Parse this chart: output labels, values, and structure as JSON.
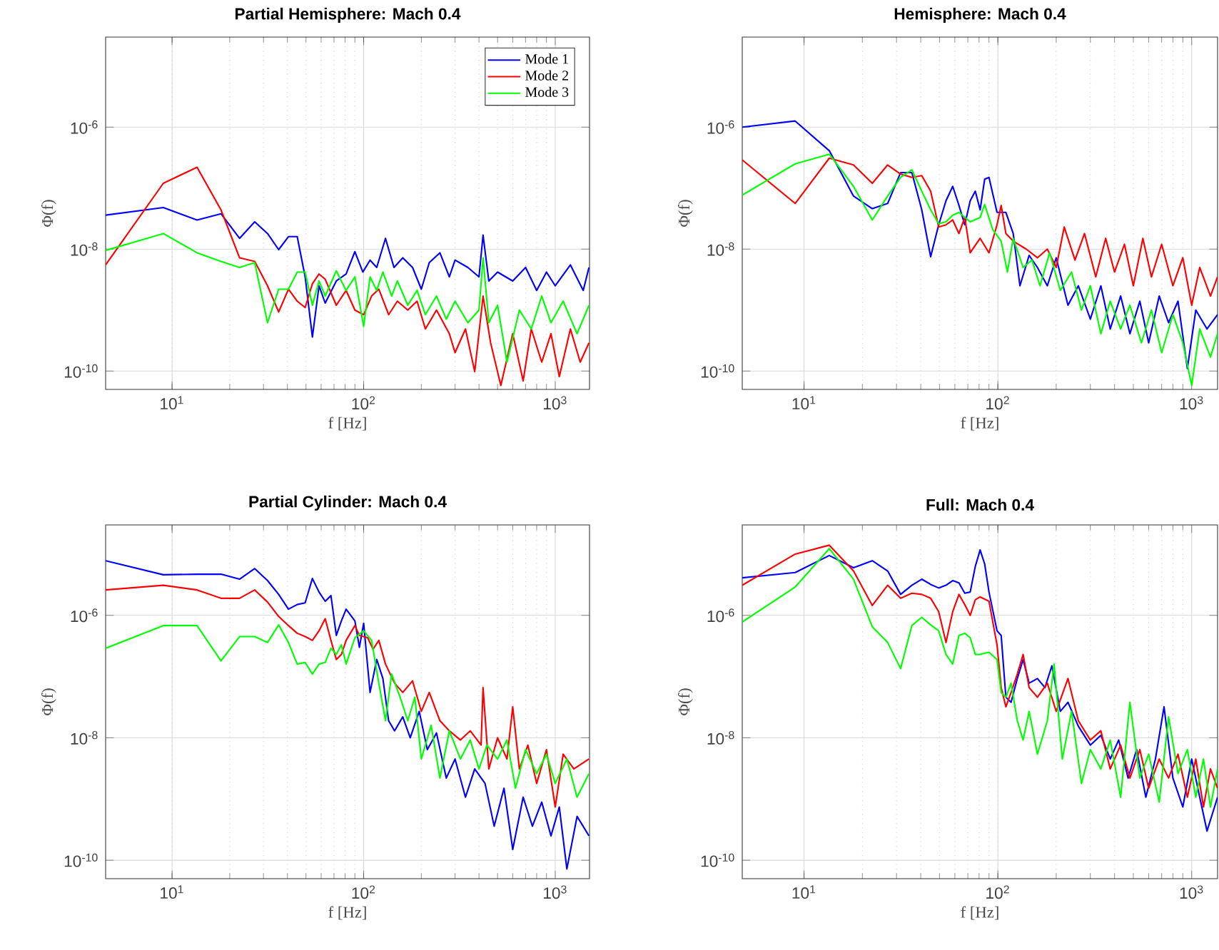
{
  "chart_data": [
    {
      "type": "line",
      "title": "Partial Hemisphere: Mach 0.4",
      "xlabel": "f [Hz]",
      "ylabel": "Φ(f)",
      "log": "xy",
      "grid": true,
      "legend": "top right",
      "xlim": [
        4.5,
        1510
      ],
      "ylim": [
        5e-11,
        3e-05
      ],
      "xticks": [
        {
          "value": 10,
          "label": "10$^{1}$"
        },
        {
          "value": 100,
          "label": "10$^{2}$"
        },
        {
          "value": 1000,
          "label": "10$^{3}$"
        }
      ],
      "yticks": [
        {
          "value": 1e-10,
          "label": "10$^{-10}$"
        },
        {
          "value": 1e-08,
          "label": "10$^{-8}$"
        },
        {
          "value": 1e-06,
          "label": "10$^{-6}$"
        }
      ],
      "series": [
        {
          "name": "Mode 1",
          "color": "#0000ff",
          "x": [
            4.5,
            9,
            13.5,
            18,
            22.5,
            27,
            31.5,
            36,
            40.5,
            45,
            49.5,
            54,
            58.5,
            63,
            72,
            81,
            90,
            99,
            108,
            117,
            130,
            144,
            160,
            180,
            200,
            220,
            250,
            280,
            300,
            350,
            400,
            420,
            450,
            500,
            600,
            700,
            800,
            900,
            1000,
            1200,
            1400,
            1500
          ],
          "values": [
            3.6e-08,
            4.8e-08,
            3e-08,
            3.8e-08,
            1.5e-08,
            2.8e-08,
            1.8e-08,
            9.8e-09,
            1.6e-08,
            1.6e-08,
            3.5e-09,
            3.6e-10,
            2.5e-09,
            1.3e-09,
            3e-09,
            3.9e-09,
            9.1e-09,
            4.2e-09,
            6.6e-09,
            5e-09,
            1.5e-08,
            5e-09,
            7.2e-09,
            5e-09,
            2.2e-09,
            6e-09,
            8.7e-09,
            3.5e-09,
            6.6e-09,
            5e-09,
            3.5e-09,
            1.7e-08,
            3e-09,
            4.2e-09,
            3e-09,
            5e-09,
            2.1e-09,
            4.2e-09,
            2.5e-09,
            5.5e-09,
            2.1e-09,
            5e-09
          ]
        },
        {
          "name": "Mode 2",
          "color": "#ff0000",
          "x": [
            4.5,
            9,
            13.5,
            18,
            22.5,
            27,
            31.5,
            36,
            40.5,
            45,
            49.5,
            54,
            58.5,
            63,
            72,
            81,
            90,
            100,
            110,
            120,
            135,
            150,
            170,
            190,
            210,
            240,
            280,
            300,
            340,
            380,
            420,
            460,
            520,
            600,
            680,
            750,
            850,
            950,
            1050,
            1200,
            1350,
            1500
          ],
          "values": [
            5.5e-09,
            1.2e-07,
            2.2e-07,
            4.4e-08,
            7.2e-09,
            6.3e-09,
            2.5e-09,
            9.3e-10,
            2.2e-09,
            1.4e-09,
            1.1e-09,
            2.7e-09,
            3.9e-09,
            3.2e-09,
            1.2e-09,
            2.1e-09,
            1e-09,
            8.4e-10,
            1.7e-09,
            2.2e-09,
            8.4e-10,
            1.4e-09,
            1e-09,
            1.4e-09,
            4.9e-10,
            1e-09,
            4.1e-10,
            2e-10,
            4.9e-10,
            9.8e-11,
            1.7e-09,
            2.9e-10,
            5.8e-11,
            4.1e-10,
            6.9e-11,
            4.9e-10,
            1.4e-10,
            4.1e-10,
            8.1e-11,
            4.9e-10,
            1.4e-10,
            2.9e-10
          ]
        },
        {
          "name": "Mode 3",
          "color": "#00ff00",
          "x": [
            4.5,
            9,
            13.5,
            18,
            22.5,
            27,
            31.5,
            36,
            40.5,
            45,
            49.5,
            54,
            58.5,
            63,
            72,
            81,
            90,
            100,
            108,
            117,
            126,
            140,
            150,
            170,
            190,
            210,
            240,
            270,
            300,
            350,
            400,
            420,
            450,
            500,
            560,
            650,
            750,
            850,
            950,
            1100,
            1300,
            1500
          ],
          "values": [
            9.5e-09,
            1.8e-08,
            8.7e-09,
            6.3e-09,
            5e-09,
            6e-09,
            6.2e-10,
            2.2e-09,
            2.2e-09,
            4.2e-09,
            4.2e-09,
            1.2e-09,
            3e-09,
            1.7e-09,
            4.4e-09,
            2.1e-09,
            3.5e-09,
            5.4e-10,
            3.5e-09,
            2.1e-09,
            4.2e-09,
            1.7e-09,
            3e-09,
            1.2e-09,
            2.1e-09,
            8.4e-10,
            1.7e-09,
            7.1e-10,
            1.4e-09,
            6.2e-10,
            1e-09,
            7.2e-09,
            6.2e-10,
            1.2e-09,
            1.4e-10,
            1e-09,
            4.9e-10,
            1.7e-09,
            6.2e-10,
            1.4e-09,
            4.1e-10,
            1.2e-09
          ]
        }
      ]
    },
    {
      "type": "line",
      "title": "Hemisphere: Mach 0.4",
      "xlabel": "f [Hz]",
      "ylabel": "Φ(f)",
      "log": "xy",
      "grid": true,
      "xlim": [
        4.8,
        1360
      ],
      "ylim": [
        5e-11,
        3e-05
      ],
      "xticks": [
        {
          "value": 10,
          "label": "10$^{1}$"
        },
        {
          "value": 100,
          "label": "10$^{2}$"
        },
        {
          "value": 1000,
          "label": "10$^{3}$"
        }
      ],
      "yticks": [
        {
          "value": 1e-10,
          "label": "10$^{-10}$"
        },
        {
          "value": 1e-08,
          "label": "10$^{-8}$"
        },
        {
          "value": 1e-06,
          "label": "10$^{-6}$"
        }
      ],
      "series": [
        {
          "color": "#0000ff",
          "x": [
            4.8,
            9,
            13.5,
            18,
            22.5,
            27,
            31.5,
            36,
            40.5,
            45,
            49.5,
            54,
            58.5,
            63,
            67.5,
            72,
            76.5,
            81,
            85.5,
            90,
            99,
            110,
            120,
            130,
            145,
            160,
            180,
            200,
            230,
            260,
            300,
            340,
            380,
            430,
            480,
            540,
            600,
            680,
            760,
            850,
            950,
            1050,
            1200,
            1360
          ],
          "values": [
            1e-06,
            1.26e-06,
            4.1e-07,
            7.4e-08,
            4.6e-08,
            5.6e-08,
            1.8e-07,
            1.8e-07,
            4.4e-08,
            7.5e-09,
            2.5e-08,
            6.2e-08,
            1.07e-07,
            5.2e-08,
            2.5e-08,
            6.2e-08,
            8.9e-08,
            4.4e-08,
            1.4e-07,
            1.5e-07,
            4e-08,
            4e-08,
            1.8e-08,
            2.5e-09,
            7.9e-09,
            5e-09,
            2.5e-09,
            7.2e-09,
            1.2e-09,
            2.5e-09,
            7.1e-10,
            2.5e-09,
            4.9e-10,
            1.7e-09,
            4.1e-10,
            1.4e-09,
            2.9e-10,
            1.7e-09,
            6.2e-10,
            1.4e-09,
            1.1e-10,
            1e-09,
            4.9e-10,
            8.4e-10
          ]
        },
        {
          "color": "#ff0000",
          "x": [
            4.8,
            9,
            13.5,
            18,
            22.5,
            27,
            31.5,
            36,
            40.5,
            45,
            49.5,
            54,
            58.5,
            63,
            67.5,
            72,
            81,
            90,
            99,
            104,
            110,
            120,
            140,
            160,
            180,
            200,
            220,
            250,
            280,
            320,
            360,
            400,
            450,
            500,
            560,
            620,
            700,
            800,
            900,
            1000,
            1100,
            1250,
            1360
          ],
          "values": [
            2.9e-07,
            5.6e-08,
            3.1e-07,
            2.4e-07,
            1.2e-07,
            2.4e-07,
            1.7e-07,
            1.5e-07,
            1.6e-07,
            8.9e-08,
            2.3e-08,
            2.5e-08,
            3e-08,
            1.8e-08,
            3.3e-08,
            8.7e-09,
            1.5e-08,
            8.7e-09,
            2.5e-08,
            5.2e-08,
            1.8e-08,
            1.35e-08,
            1e-08,
            7.2e-09,
            1e-08,
            5e-09,
            2.3e-08,
            6.6e-09,
            1.8e-08,
            3.5e-09,
            1.5e-08,
            4.2e-09,
            1.2e-08,
            2.5e-09,
            1.5e-08,
            3.5e-09,
            1.2e-08,
            2.5e-09,
            7.2e-09,
            1.2e-09,
            5e-09,
            1.7e-09,
            3.5e-09
          ]
        },
        {
          "color": "#00ff00",
          "x": [
            4.8,
            9,
            13.5,
            18,
            22.5,
            27,
            31.5,
            36,
            40.5,
            45,
            49.5,
            54,
            58.5,
            63,
            72,
            81,
            85.5,
            94,
            104,
            112,
            120,
            135,
            150,
            165,
            185,
            210,
            240,
            270,
            300,
            340,
            380,
            430,
            480,
            550,
            620,
            700,
            800,
            900,
            1000,
            1100,
            1250,
            1360
          ],
          "values": [
            7.7e-08,
            2.5e-07,
            3.6e-07,
            1.07e-07,
            3e-08,
            7.4e-08,
            1.5e-07,
            2e-07,
            8.9e-08,
            4.4e-08,
            2.6e-08,
            2.8e-08,
            3.6e-08,
            4e-08,
            2.8e-08,
            3.3e-08,
            5.4e-08,
            2.1e-08,
            1.35e-08,
            4.2e-09,
            1.5e-08,
            5e-09,
            6.6e-09,
            2.5e-09,
            8.7e-09,
            2.1e-09,
            4.2e-09,
            1e-09,
            2.5e-09,
            4.1e-10,
            1.4e-09,
            4.9e-10,
            1.2e-09,
            2.9e-10,
            1e-09,
            2e-10,
            8.4e-10,
            2.9e-10,
            5.8e-11,
            4.9e-10,
            1.7e-10,
            4.1e-10
          ]
        }
      ]
    },
    {
      "type": "line",
      "title": "Partial Cylinder: Mach 0.4",
      "xlabel": "f [Hz]",
      "ylabel": "Φ(f)",
      "log": "xy",
      "grid": true,
      "xlim": [
        4.5,
        1510
      ],
      "ylim": [
        5e-11,
        3e-05
      ],
      "xticks": [
        {
          "value": 10,
          "label": "10$^{1}$"
        },
        {
          "value": 100,
          "label": "10$^{2}$"
        },
        {
          "value": 1000,
          "label": "10$^{3}$"
        }
      ],
      "yticks": [
        {
          "value": 1e-10,
          "label": "10$^{-10}$"
        },
        {
          "value": 1e-08,
          "label": "10$^{-8}$"
        },
        {
          "value": 1e-06,
          "label": "10$^{-6}$"
        }
      ],
      "series": [
        {
          "color": "#0000ff",
          "x": [
            4.5,
            9,
            13.5,
            18,
            22.5,
            27,
            31.5,
            36,
            40.5,
            45,
            49.5,
            54,
            58.5,
            63,
            67.5,
            72,
            76.5,
            81,
            90,
            95,
            100,
            108,
            117,
            126,
            135,
            145,
            160,
            175,
            195,
            215,
            240,
            270,
            300,
            340,
            380,
            430,
            480,
            540,
            600,
            680,
            760,
            850,
            950,
            1050,
            1150,
            1300,
            1500
          ],
          "values": [
            7.8e-06,
            4.6e-06,
            4.7e-06,
            4.7e-06,
            3.9e-06,
            5.8e-06,
            3.7e-06,
            2.2e-06,
            1.26e-06,
            1.5e-06,
            1.6e-06,
            4e-06,
            2.4e-06,
            1.7e-06,
            2.1e-06,
            4.7e-07,
            8.1e-07,
            1.26e-06,
            8.1e-07,
            3e-07,
            7.4e-07,
            5.5e-08,
            1.9e-07,
            9.3e-08,
            1.9e-08,
            1.3e-08,
            2.2e-08,
            1e-08,
            2.7e-08,
            6.4e-09,
            1.2e-08,
            2.2e-09,
            4.5e-09,
            1.07e-09,
            3.1e-09,
            1.8e-09,
            3.6e-10,
            1.5e-09,
            1.5e-10,
            1.07e-09,
            3.6e-10,
            8.9e-10,
            2.5e-10,
            7.4e-10,
            7.2e-11,
            5.2e-10,
            2.5e-10
          ]
        },
        {
          "color": "#ff0000",
          "x": [
            4.5,
            9,
            13.5,
            18,
            22.5,
            27,
            31.5,
            36,
            40.5,
            45,
            49.5,
            54,
            58.5,
            63,
            67.5,
            72,
            76.5,
            81,
            90,
            95,
            105,
            112,
            120,
            130,
            145,
            160,
            180,
            200,
            220,
            250,
            280,
            320,
            360,
            410,
            420,
            450,
            500,
            560,
            600,
            650,
            720,
            800,
            900,
            1000,
            1100,
            1250,
            1500
          ],
          "values": [
            2.6e-06,
            3.1e-06,
            2.6e-06,
            1.9e-06,
            1.9e-06,
            2.6e-06,
            1.65e-06,
            9.6e-07,
            6.8e-07,
            5.1e-07,
            4.5e-07,
            3.9e-07,
            5.6e-07,
            8.8e-07,
            3.9e-07,
            1.9e-07,
            2.3e-07,
            3.9e-07,
            6.8e-07,
            4.7e-07,
            4.3e-07,
            2.8e-07,
            3.9e-07,
            1.6e-07,
            7.8e-08,
            5.5e-08,
            8.5e-08,
            2.7e-08,
            5.5e-08,
            1.9e-08,
            1.3e-08,
            9.2e-09,
            1.3e-08,
            7.6e-09,
            6.6e-08,
            3.1e-09,
            1e-08,
            4.5e-09,
            3.2e-08,
            3.1e-09,
            7.6e-09,
            1.8e-09,
            6.4e-09,
            7.4e-10,
            5.4e-09,
            3.1e-09,
            4.5e-09
          ]
        },
        {
          "color": "#00ff00",
          "x": [
            4.5,
            9,
            13.5,
            18,
            22.5,
            27,
            31.5,
            36,
            40.5,
            45,
            49.5,
            54,
            58.5,
            63,
            67.5,
            72,
            76.5,
            81,
            90,
            100,
            110,
            120,
            130,
            140,
            155,
            170,
            185,
            200,
            225,
            250,
            280,
            320,
            360,
            400,
            440,
            500,
            560,
            620,
            700,
            800,
            900,
            1000,
            1150,
            1300,
            1500
          ],
          "values": [
            2.9e-07,
            6.8e-07,
            6.8e-07,
            1.8e-07,
            4.5e-07,
            4.5e-07,
            3.6e-07,
            7e-07,
            3.6e-07,
            1.6e-07,
            1.7e-07,
            1.1e-07,
            1.6e-07,
            1.7e-07,
            2.9e-07,
            2.3e-07,
            3.3e-07,
            1.6e-07,
            4.3e-07,
            5.6e-07,
            3.9e-07,
            7.8e-08,
            1.9e-08,
            1.1e-07,
            4.6e-08,
            1.9e-08,
            4.6e-08,
            4.5e-09,
            1.6e-08,
            2.2e-09,
            1.3e-08,
            4.5e-09,
            9.2e-09,
            3.1e-09,
            7.6e-09,
            4.5e-09,
            9.2e-09,
            1.5e-09,
            6.4e-09,
            2.6e-09,
            5.4e-09,
            1.8e-09,
            4.5e-09,
            1.07e-09,
            2.6e-09
          ]
        }
      ]
    },
    {
      "type": "line",
      "title": "Full: Mach 0.4",
      "xlabel": "f [Hz]",
      "ylabel": "Φ(f)",
      "log": "xy",
      "grid": true,
      "xlim": [
        4.8,
        1360
      ],
      "ylim": [
        5e-11,
        3e-05
      ],
      "xticks": [
        {
          "value": 10,
          "label": "10$^{1}$"
        },
        {
          "value": 100,
          "label": "10$^{2}$"
        },
        {
          "value": 1000,
          "label": "10$^{3}$"
        }
      ],
      "yticks": [
        {
          "value": 1e-10,
          "label": "10$^{-10}$"
        },
        {
          "value": 1e-08,
          "label": "10$^{-8}$"
        },
        {
          "value": 1e-06,
          "label": "10$^{-6}$"
        }
      ],
      "series": [
        {
          "color": "#0000ff",
          "x": [
            4.8,
            9,
            13.5,
            18,
            22.5,
            27,
            31.5,
            36,
            40.5,
            45,
            49.5,
            54,
            58.5,
            63,
            67.5,
            72,
            76.5,
            81,
            85.5,
            90,
            99,
            104,
            110,
            117,
            126,
            135,
            145,
            160,
            175,
            190,
            210,
            230,
            260,
            300,
            340,
            380,
            420,
            470,
            520,
            580,
            650,
            720,
            800,
            900,
            1000,
            1100,
            1200,
            1360
          ],
          "values": [
            4.1e-06,
            5e-06,
            9.5e-06,
            6e-06,
            7.8e-06,
            5.3e-06,
            2.2e-06,
            3.1e-06,
            3.9e-06,
            3.2e-06,
            2.8e-06,
            3.1e-06,
            3.7e-06,
            3.4e-06,
            2.3e-06,
            2.4e-06,
            6.3e-06,
            1.17e-05,
            6.9e-06,
            2.4e-06,
            5.6e-07,
            4.7e-07,
            4.6e-08,
            3.8e-08,
            9.3e-08,
            1.9e-07,
            7.8e-08,
            9.3e-08,
            6.6e-08,
            1.5e-07,
            2.7e-08,
            3.8e-08,
            1.55e-08,
            7.6e-09,
            1.1e-08,
            4.5e-09,
            9.2e-09,
            2.2e-09,
            6.4e-09,
            1.07e-09,
            4.5e-09,
            3.2e-08,
            2.2e-09,
            7.4e-10,
            4.5e-09,
            1.07e-09,
            3e-10,
            1.07e-09
          ]
        },
        {
          "color": "#ff0000",
          "x": [
            4.8,
            9,
            13.5,
            18,
            22.5,
            27,
            31.5,
            36,
            40.5,
            45,
            49.5,
            54,
            58.5,
            63,
            67.5,
            72,
            76.5,
            81,
            90,
            99,
            104,
            110,
            117,
            126,
            135,
            145,
            160,
            180,
            200,
            230,
            260,
            300,
            340,
            380,
            430,
            480,
            540,
            600,
            680,
            760,
            850,
            950,
            1050,
            1150,
            1250,
            1360
          ],
          "values": [
            3.1e-06,
            1e-05,
            1.4e-05,
            5.3e-06,
            1.45e-06,
            3.1e-06,
            1.9e-06,
            2.3e-06,
            2.2e-06,
            1.9e-06,
            1.15e-06,
            3.6e-07,
            1.15e-06,
            2.2e-06,
            1.5e-06,
            1e-06,
            1.8e-06,
            2e-06,
            1.7e-06,
            3.3e-07,
            6.6e-08,
            3.2e-08,
            5.5e-08,
            1.1e-07,
            2.3e-07,
            6.6e-08,
            4.6e-08,
            7.8e-08,
            2.7e-08,
            9.3e-08,
            1.9e-08,
            9.2e-09,
            1.3e-08,
            3.1e-09,
            7.6e-09,
            2.2e-09,
            6.4e-09,
            1.5e-09,
            4.5e-09,
            2.2e-09,
            5.4e-09,
            1.07e-09,
            4.5e-09,
            7.4e-10,
            3.1e-09,
            1.5e-09
          ]
        },
        {
          "color": "#00ff00",
          "x": [
            4.8,
            9,
            13.5,
            18,
            22.5,
            27,
            31.5,
            36,
            40.5,
            45,
            49.5,
            54,
            58.5,
            63,
            67.5,
            72,
            76.5,
            81,
            90,
            99,
            104,
            110,
            117,
            126,
            135,
            145,
            160,
            180,
            195,
            215,
            240,
            270,
            300,
            340,
            380,
            430,
            480,
            540,
            600,
            680,
            760,
            850,
            950,
            1050,
            1150,
            1250,
            1360
          ],
          "values": [
            7.8e-07,
            2.9e-06,
            1.23e-05,
            3.9e-06,
            6.5e-07,
            3.6e-07,
            1.35e-07,
            6.8e-07,
            9.3e-07,
            7e-07,
            5.6e-07,
            2.3e-07,
            1.6e-07,
            4.7e-07,
            5.1e-07,
            4.3e-07,
            2.3e-07,
            2.3e-07,
            2.5e-07,
            1.9e-07,
            5.5e-08,
            4.6e-08,
            7.8e-08,
            1.9e-08,
            9.2e-09,
            2.7e-08,
            5.4e-09,
            1.9e-08,
            1.6e-07,
            4.5e-09,
            2.7e-08,
            1.8e-09,
            6.4e-09,
            3.1e-09,
            9.2e-09,
            1.07e-09,
            3.8e-08,
            2.2e-09,
            5.4e-09,
            8.9e-10,
            2.2e-08,
            2.6e-09,
            6.4e-09,
            1.07e-09,
            4.5e-09,
            7.4e-10,
            3.1e-09
          ]
        }
      ]
    }
  ]
}
